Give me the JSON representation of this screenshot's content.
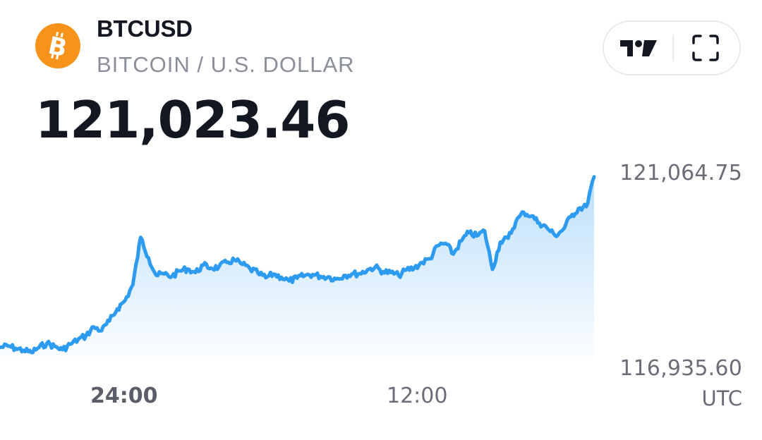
{
  "header": {
    "symbol": "BTCUSD",
    "description": "BITCOIN / U.S. DOLLAR",
    "price": "121,023.46",
    "logo_icon": "bitcoin-icon",
    "logo_color": "#f7931a"
  },
  "actions": {
    "brand_icon": "tradingview-logo-icon",
    "fullscreen_icon": "fullscreen-icon"
  },
  "chart_data": {
    "type": "area",
    "y_max_label": "121,064.75",
    "y_min_label": "116,935.60",
    "x_tick_labels": [
      "24:00",
      "12:00"
    ],
    "timezone_label": "UTC",
    "line_color": "#2d9bf0",
    "ylim": [
      116935.6,
      121064.75
    ],
    "y": [
      117350,
      117380,
      117330,
      117290,
      117240,
      117350,
      117440,
      117370,
      117300,
      117420,
      117520,
      117600,
      117790,
      117710,
      117920,
      118180,
      118360,
      118700,
      119720,
      119280,
      118900,
      118930,
      118880,
      119000,
      119040,
      118960,
      119120,
      119060,
      119080,
      119180,
      119230,
      119140,
      119040,
      118950,
      118850,
      118930,
      118860,
      118780,
      118840,
      118900,
      118920,
      118880,
      118870,
      118820,
      118900,
      118930,
      118940,
      119020,
      119080,
      118980,
      118960,
      118900,
      119020,
      119060,
      119180,
      119260,
      119540,
      119590,
      119360,
      119640,
      119820,
      119750,
      119860,
      119030,
      119620,
      119700,
      120060,
      120260,
      120180,
      120030,
      119920,
      119760,
      119880,
      120160,
      120340,
      120380,
      121023.46
    ]
  }
}
